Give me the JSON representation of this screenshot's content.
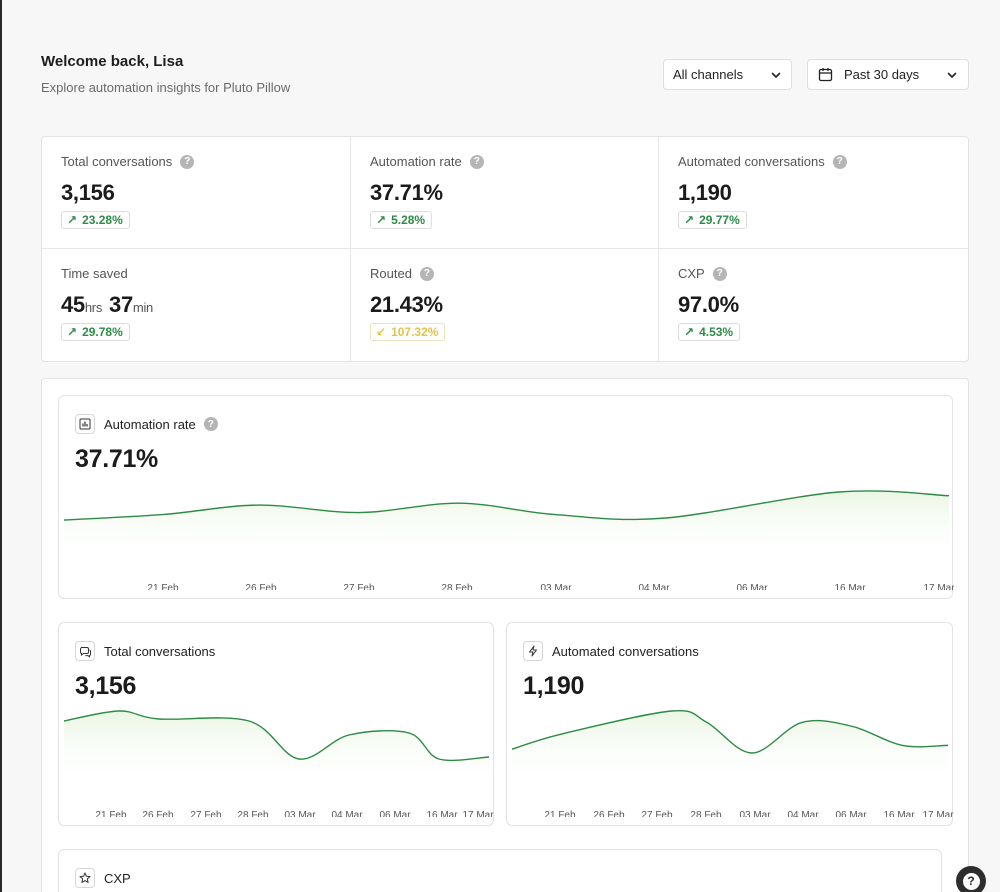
{
  "header": {
    "title": "Welcome back, Lisa",
    "subtitle": "Explore automation insights for Pluto Pillow"
  },
  "filters": {
    "channel": "All channels",
    "date_range": "Past 30 days"
  },
  "kpis": [
    {
      "label": "Total conversations",
      "value": "3,156",
      "change": "23.28%",
      "trend": "up",
      "help": true
    },
    {
      "label": "Automation rate",
      "value": "37.71%",
      "change": "5.28%",
      "trend": "up",
      "help": true
    },
    {
      "label": "Automated conversations",
      "value": "1,190",
      "change": "29.77%",
      "trend": "up",
      "help": true
    },
    {
      "label": "Time saved",
      "value_hours": "45",
      "unit_hours": "hrs",
      "value_minutes": "37",
      "unit_minutes": "min",
      "change": "29.78%",
      "trend": "up",
      "help": false
    },
    {
      "label": "Routed",
      "value": "21.43%",
      "change": "107.32%",
      "trend": "down",
      "help": true
    },
    {
      "label": "CXP",
      "value": "97.0%",
      "change": "4.53%",
      "trend": "up",
      "help": true
    }
  ],
  "cards": {
    "automation_rate": {
      "title": "Automation rate",
      "value": "37.71%",
      "icon": "bar-chart-icon"
    },
    "total_conversations": {
      "title": "Total conversations",
      "value": "3,156",
      "icon": "chat-bubbles-icon"
    },
    "automated_conversations": {
      "title": "Automated conversations",
      "value": "1,190",
      "icon": "lightning-icon"
    },
    "cxp": {
      "title": "CXP",
      "icon": "star-icon"
    }
  },
  "help_glyph": "?",
  "colors": {
    "line": "#2e8b46",
    "fill": "#eaf6e3",
    "badge_up": "#2e8b46",
    "badge_down": "#e3c24a"
  },
  "chart_data": [
    {
      "type": "area",
      "title": "Automation rate",
      "x": [
        "21 Feb",
        "26 Feb",
        "27 Feb",
        "28 Feb",
        "03 Mar",
        "04 Mar",
        "06 Mar",
        "16 Mar",
        "17 Mar"
      ],
      "series": [
        {
          "values": [
            37.6,
            37.9,
            38.4,
            38.0,
            38.5,
            37.9,
            37.7,
            39.1,
            38.9
          ]
        }
      ]
    },
    {
      "type": "area",
      "title": "Total conversations",
      "x": [
        "21 Feb",
        "26 Feb",
        "27 Feb",
        "28 Feb",
        "03 Mar",
        "04 Mar",
        "06 Mar",
        "16 Mar",
        "17 Mar"
      ],
      "series": [
        {
          "values": [
            118,
            128,
            120,
            118,
            80,
            104,
            106,
            80,
            82
          ]
        }
      ]
    },
    {
      "type": "area",
      "title": "Automated conversations",
      "x": [
        "21 Feb",
        "26 Feb",
        "27 Feb",
        "28 Feb",
        "03 Mar",
        "04 Mar",
        "06 Mar",
        "16 Mar",
        "17 Mar"
      ],
      "series": [
        {
          "values": [
            37,
            41,
            47,
            44,
            36,
            44,
            43,
            38,
            38
          ]
        }
      ]
    }
  ]
}
